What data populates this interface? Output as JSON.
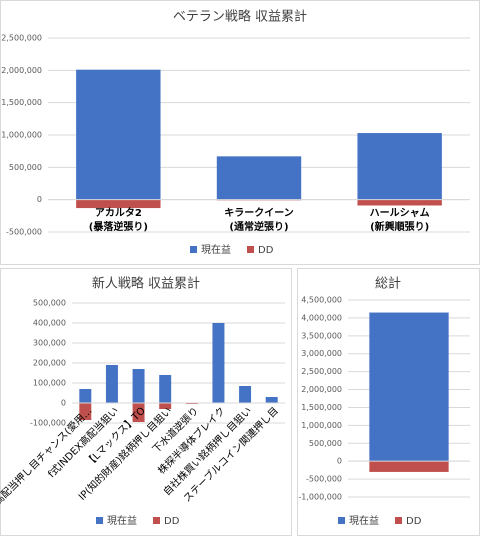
{
  "chart_data": [
    {
      "type": "bar",
      "stacked": true,
      "title": "ベテラン戦略 収益累計",
      "categories": [
        "アカルタ2\n(暴落逆張り)",
        "キラークイーン\n(通常逆張り)",
        "ハールシャム\n(新興順張り)"
      ],
      "series": [
        {
          "name": "現在益",
          "color": "#4472c4",
          "values": [
            2010000,
            670000,
            1030000
          ]
        },
        {
          "name": "DD",
          "color": "#c0504d",
          "values": [
            -130000,
            -10000,
            -90000
          ]
        }
      ],
      "ylim": [
        -500000,
        2500000
      ],
      "yticks": [
        {
          "value": -500000,
          "label": "-500,000"
        },
        0,
        {
          "value": 500000,
          "label": "500,000"
        },
        {
          "value": 1000000,
          "label": "1,000,000"
        },
        {
          "value": 1500000,
          "label": "1,500,000"
        },
        {
          "value": 2000000,
          "label": "2,000,000"
        },
        {
          "value": 2500000,
          "label": "2,500,000"
        }
      ],
      "grid": true,
      "legend": "bottom"
    },
    {
      "type": "bar",
      "stacked": true,
      "title": "新人戦略 収益累計",
      "categories": [
        "高配当押し目チャンス(愛用…",
        "f式INDEX高配当狙い",
        "【Lマックス】TO",
        "IP(知的財産)銘柄押し目狙い",
        "下水道逆張り",
        "株探半導体ブレイク",
        "自社株買い銘柄押し目狙い",
        "ステーブルコイン関連押し目"
      ],
      "series": [
        {
          "name": "現在益",
          "color": "#4472c4",
          "values": [
            70000,
            190000,
            170000,
            140000,
            0,
            400000,
            85000,
            30000
          ]
        },
        {
          "name": "DD",
          "color": "#c0504d",
          "values": [
            -85000,
            0,
            -95000,
            -30000,
            -5000,
            0,
            0,
            0
          ]
        }
      ],
      "ylim": [
        -100000,
        500000
      ],
      "yticks": [
        {
          "value": -100000,
          "label": "-100,000"
        },
        0,
        {
          "value": 100000,
          "label": "100,000"
        },
        {
          "value": 200000,
          "label": "200,000"
        },
        {
          "value": 300000,
          "label": "300,000"
        },
        {
          "value": 400000,
          "label": "400,000"
        },
        {
          "value": 500000,
          "label": "500,000"
        }
      ],
      "grid": true,
      "legend": "bottom"
    },
    {
      "type": "bar",
      "stacked": true,
      "title": "総計",
      "categories": [
        null
      ],
      "series": [
        {
          "name": "現在益",
          "color": "#4472c4",
          "values": [
            4150000
          ]
        },
        {
          "name": "DD",
          "color": "#c0504d",
          "values": [
            -300000
          ]
        }
      ],
      "ylim": [
        -1000000,
        4500000
      ],
      "yticks": [
        {
          "value": -1000000,
          "label": "-1,000,000"
        },
        {
          "value": -500000,
          "label": "-500,000"
        },
        0,
        {
          "value": 500000,
          "label": "500,000"
        },
        {
          "value": 1000000,
          "label": "1,000,000"
        },
        {
          "value": 1500000,
          "label": "1,500,000"
        },
        {
          "value": 2000000,
          "label": "2,000,000"
        },
        {
          "value": 2500000,
          "label": "2,500,000"
        },
        {
          "value": 3000000,
          "label": "3,000,000"
        },
        {
          "value": 3500000,
          "label": "3,500,000"
        },
        {
          "value": 4000000,
          "label": "4,000,000"
        },
        {
          "value": 4500000,
          "label": "4,500,000"
        }
      ],
      "grid": true,
      "legend": "bottom"
    }
  ]
}
